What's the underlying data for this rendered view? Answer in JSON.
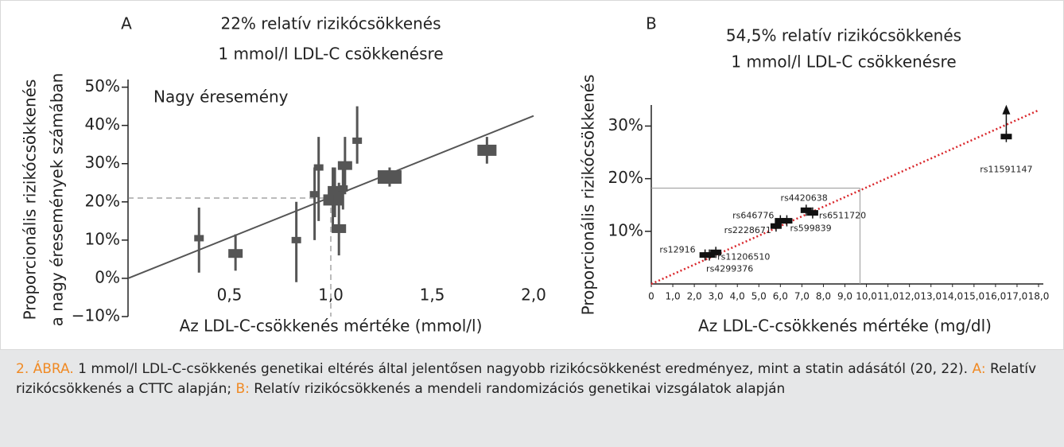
{
  "chart_data": [
    {
      "type": "scatter",
      "panel": "A",
      "title": [
        "22% relatív rizikócsökkenés",
        "1 mmol/l LDL-C csökkenésre"
      ],
      "ylabel": [
        "Proporcionális rizikócsökkenés",
        "a nagy éresemények számában"
      ],
      "xlabel": "Az LDL-C-csökkenés mértéke (mmol/l)",
      "annotation": "Nagy éresemény",
      "xlim": [
        0,
        2.0
      ],
      "ylim": [
        -10,
        52
      ],
      "xticks": [
        {
          "value": 0.5,
          "label": "0,5"
        },
        {
          "value": 1.0,
          "label": "1,0"
        },
        {
          "value": 1.5,
          "label": "1,5"
        },
        {
          "value": 2.0,
          "label": "2,0"
        }
      ],
      "yticks": [
        {
          "value": -10,
          "label": "−10%"
        },
        {
          "value": 0,
          "label": "0%"
        },
        {
          "value": 10,
          "label": "10%"
        },
        {
          "value": 20,
          "label": "20%"
        },
        {
          "value": 30,
          "label": "30%"
        },
        {
          "value": 40,
          "label": "40%"
        },
        {
          "value": 50,
          "label": "50%"
        }
      ],
      "color": "#555555",
      "x": [
        0.35,
        0.53,
        0.83,
        0.92,
        0.94,
        1.01,
        1.02,
        1.04,
        1.06,
        1.07,
        1.13,
        1.29,
        1.77
      ],
      "values": [
        10.5,
        6.5,
        10,
        22,
        29,
        20.5,
        23,
        13,
        23.5,
        29.5,
        36,
        26.5,
        33.5
      ],
      "ci_low": [
        1.5,
        2,
        -1,
        10,
        15,
        12,
        16,
        6,
        18,
        22,
        30,
        24,
        30
      ],
      "ci_high": [
        18.5,
        11.5,
        20,
        29,
        37,
        29,
        29,
        25,
        29,
        37,
        45,
        29,
        37
      ],
      "sizes": [
        1,
        2,
        1,
        1,
        1,
        3,
        2,
        2,
        1,
        2,
        1,
        4,
        3
      ],
      "fit": {
        "x": [
          0,
          2.0
        ],
        "values": [
          0,
          42.5
        ],
        "color": "#555555"
      },
      "reference": {
        "x": 1.0,
        "y": 21
      }
    },
    {
      "type": "scatter",
      "panel": "B",
      "title": [
        "54,5% relatív rizikócsökkenés",
        "1 mmol/l LDL-C csökkenésre"
      ],
      "ylabel": [
        "Proporcionális rizikócsökkenés"
      ],
      "xlabel": "Az LDL-C-csökkenés mértéke (mg/dl)",
      "xlim": [
        0,
        18.0
      ],
      "ylim": [
        0,
        34
      ],
      "xticks": [
        0,
        {
          "value": 1.0,
          "label": "1,0"
        },
        {
          "value": 2.0,
          "label": "2,0"
        },
        {
          "value": 3.0,
          "label": "3,0"
        },
        {
          "value": 4.0,
          "label": "4,0"
        },
        {
          "value": 5.0,
          "label": "5,0"
        },
        {
          "value": 6.0,
          "label": "6,0"
        },
        {
          "value": 7.0,
          "label": "7,0"
        },
        {
          "value": 8.0,
          "label": "8,0"
        },
        {
          "value": 9.0,
          "label": "9,0"
        },
        {
          "value": 10.0,
          "label": "10,0"
        },
        {
          "value": 11.0,
          "label": "11,0"
        },
        {
          "value": 12.0,
          "label": "12,0"
        },
        {
          "value": 13.0,
          "label": "13,0"
        },
        {
          "value": 14.0,
          "label": "14,0"
        },
        {
          "value": 15.0,
          "label": "15,0"
        },
        {
          "value": 16.0,
          "label": "16,0"
        },
        {
          "value": 17.0,
          "label": "17,0"
        },
        {
          "value": 18.0,
          "label": "18,0"
        }
      ],
      "yticks": [
        {
          "value": 10,
          "label": "10%"
        },
        {
          "value": 20,
          "label": "20%"
        },
        {
          "value": 30,
          "label": "30%"
        }
      ],
      "color": "#111111",
      "labels": [
        "rs12916",
        "rs4299376",
        "rs11206510",
        "rs2228671",
        "rs646776",
        "rs599839",
        "rs4420638",
        "rs6511720",
        "rs11591147"
      ],
      "x": [
        2.5,
        2.7,
        3.0,
        5.8,
        6.0,
        6.3,
        7.2,
        7.5,
        16.5
      ],
      "values": [
        5.5,
        5.5,
        6,
        11,
        12,
        12,
        14,
        13.5,
        28
      ],
      "fit": {
        "x": [
          0,
          18.0
        ],
        "values": [
          0,
          33
        ],
        "color": "#d9262b"
      },
      "reference": {
        "x": 9.7,
        "y": 18.2
      }
    }
  ],
  "caption": {
    "label": "2. ÁBRA.",
    "text": " 1 mmol/l LDL-C-csökkenés genetikai eltérés által jelentősen nagyobb rizikócsökkenést eredményez, mint a statin adásától (20, 22).",
    "a_label": "A:",
    "a_text": " Relatív rizikócsökkenés a CTTC alapján;",
    "b_label": "B:",
    "b_text": " Relatív rizikócsökkenés a mendeli randomizációs genetikai vizsgálatok alapján"
  }
}
